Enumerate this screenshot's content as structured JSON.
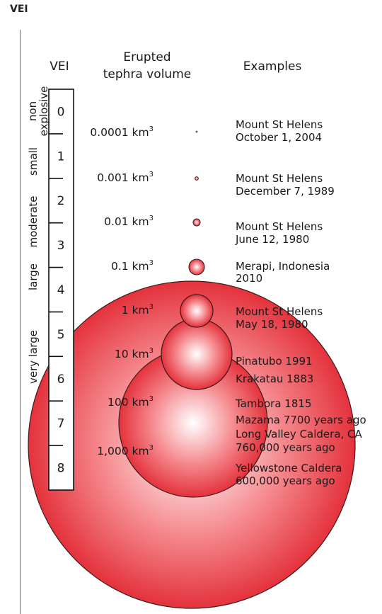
{
  "page": {
    "title": "VEI"
  },
  "headers": {
    "vei": "VEI",
    "volume_line1": "Erupted",
    "volume_line2": "tephra volume",
    "examples": "Examples"
  },
  "categories": [
    {
      "line1": "non",
      "line2": "explosive"
    },
    {
      "line1": "small"
    },
    {
      "line1": "moderate"
    },
    {
      "line1": "large"
    },
    {
      "line1": "very large"
    }
  ],
  "levels": [
    {
      "vei": "0",
      "volume": "0.0001 km",
      "exp": "3",
      "example_lines": [
        "Mount St Helens",
        "October 1, 2004"
      ]
    },
    {
      "vei": "1",
      "volume": "0.001 km",
      "exp": "3",
      "example_lines": [
        "Mount St Helens",
        "December 7, 1989"
      ]
    },
    {
      "vei": "2",
      "volume": "0.01 km",
      "exp": "3",
      "example_lines": [
        "Mount St Helens",
        "June 12, 1980"
      ]
    },
    {
      "vei": "3",
      "volume": "0.1 km",
      "exp": "3",
      "example_lines": [
        "Merapi, Indonesia",
        "2010"
      ]
    },
    {
      "vei": "4",
      "volume": "1 km",
      "exp": "3",
      "example_lines": [
        "Mount St Helens",
        "May 18, 1980"
      ]
    },
    {
      "vei": "5",
      "volume": "10 km",
      "exp": "3",
      "example_lines": [
        "Pinatubo 1991",
        "Krakatau 1883"
      ]
    },
    {
      "vei": "6",
      "volume": "100 km",
      "exp": "3",
      "example_lines": [
        "Tambora 1815",
        "Mazama 7700 years ago"
      ]
    },
    {
      "vei": "7",
      "volume": "1,000 km",
      "exp": "3",
      "example_lines": [
        "Long Valley Caldera, CA",
        "760,000 years ago"
      ]
    },
    {
      "vei": "8",
      "example_lines": [
        "Yellowstone Caldera",
        "600,000 years ago"
      ]
    }
  ],
  "colors": {
    "circle_fill_edge": "#e4323c",
    "circle_fill_center": "#ffffff",
    "circle_stroke": "#3a1a1a"
  }
}
